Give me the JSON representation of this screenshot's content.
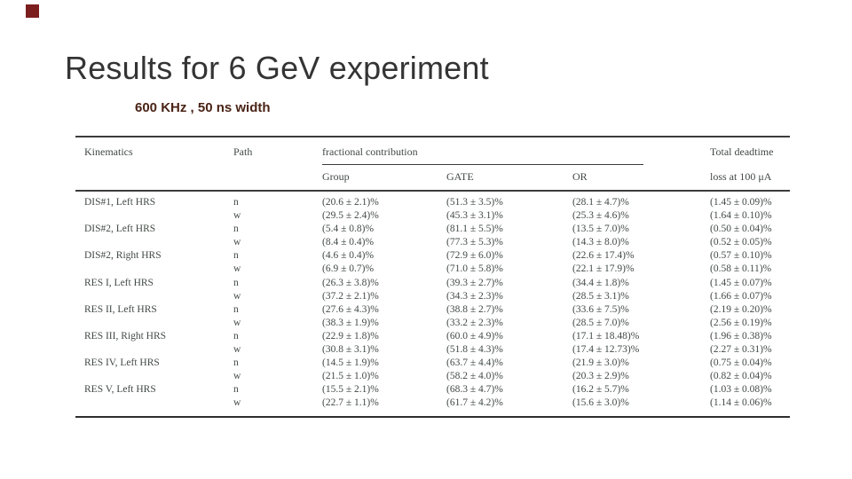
{
  "slide": {
    "title": "Results for 6 GeV experiment",
    "subtitle": "600 KHz , 50 ns width",
    "accent_color": "#7b1e1e"
  },
  "table": {
    "col_kinematics": "Kinematics",
    "col_path": "Path",
    "col_fractional": "fractional contribution",
    "col_group": "Group",
    "col_gate": "GATE",
    "col_or": "OR",
    "col_deadtime_line1": "Total deadtime",
    "col_deadtime_line2": "loss at 100 μA",
    "groups": [
      {
        "kinematics": "DIS#1, Left HRS",
        "rows": [
          {
            "path": "n",
            "group": "(20.6 ± 2.1)%",
            "gate": "(51.3 ± 3.5)%",
            "or": "(28.1 ± 4.7)%",
            "deadtime": "(1.45 ± 0.09)%"
          },
          {
            "path": "w",
            "group": "(29.5 ± 2.4)%",
            "gate": "(45.3 ± 3.1)%",
            "or": "(25.3 ± 4.6)%",
            "deadtime": "(1.64 ± 0.10)%"
          }
        ]
      },
      {
        "kinematics": "DIS#2, Left HRS",
        "rows": [
          {
            "path": "n",
            "group": "(5.4 ± 0.8)%",
            "gate": "(81.1 ± 5.5)%",
            "or": "(13.5 ± 7.0)%",
            "deadtime": "(0.50 ± 0.04)%"
          },
          {
            "path": "w",
            "group": "(8.4 ± 0.4)%",
            "gate": "(77.3 ± 5.3)%",
            "or": "(14.3 ± 8.0)%",
            "deadtime": "(0.52 ± 0.05)%"
          }
        ]
      },
      {
        "kinematics": "DIS#2, Right HRS",
        "rows": [
          {
            "path": "n",
            "group": "(4.6 ± 0.4)%",
            "gate": "(72.9 ± 6.0)%",
            "or": "(22.6 ± 17.4)%",
            "deadtime": "(0.57 ± 0.10)%"
          },
          {
            "path": "w",
            "group": "(6.9 ± 0.7)%",
            "gate": "(71.0 ± 5.8)%",
            "or": "(22.1 ± 17.9)%",
            "deadtime": "(0.58 ± 0.11)%"
          }
        ]
      },
      {
        "kinematics": "RES I, Left HRS",
        "rows": [
          {
            "path": "n",
            "group": "(26.3 ± 3.8)%",
            "gate": "(39.3 ± 2.7)%",
            "or": "(34.4 ± 1.8)%",
            "deadtime": "(1.45 ± 0.07)%"
          },
          {
            "path": "w",
            "group": "(37.2 ± 2.1)%",
            "gate": "(34.3 ± 2.3)%",
            "or": "(28.5 ± 3.1)%",
            "deadtime": "(1.66 ± 0.07)%"
          }
        ]
      },
      {
        "kinematics": "RES II, Left HRS",
        "rows": [
          {
            "path": "n",
            "group": "(27.6 ± 4.3)%",
            "gate": "(38.8 ± 2.7)%",
            "or": "(33.6 ± 7.5)%",
            "deadtime": "(2.19 ± 0.20)%"
          },
          {
            "path": "w",
            "group": "(38.3 ± 1.9)%",
            "gate": "(33.2 ± 2.3)%",
            "or": "(28.5 ± 7.0)%",
            "deadtime": "(2.56 ± 0.19)%"
          }
        ]
      },
      {
        "kinematics": "RES III, Right HRS",
        "rows": [
          {
            "path": "n",
            "group": "(22.9 ± 1.8)%",
            "gate": "(60.0 ± 4.9)%",
            "or": "(17.1 ± 18.48)%",
            "deadtime": "(1.96 ± 0.38)%"
          },
          {
            "path": "w",
            "group": "(30.8 ± 3.1)%",
            "gate": "(51.8 ± 4.3)%",
            "or": "(17.4 ± 12.73)%",
            "deadtime": "(2.27 ± 0.31)%"
          }
        ]
      },
      {
        "kinematics": "RES IV, Left HRS",
        "rows": [
          {
            "path": "n",
            "group": "(14.5 ± 1.9)%",
            "gate": "(63.7 ± 4.4)%",
            "or": "(21.9 ± 3.0)%",
            "deadtime": "(0.75 ± 0.04)%"
          },
          {
            "path": "w",
            "group": "(21.5 ± 1.0)%",
            "gate": "(58.2 ± 4.0)%",
            "or": "(20.3 ± 2.9)%",
            "deadtime": "(0.82 ± 0.04)%"
          }
        ]
      },
      {
        "kinematics": "RES V, Left HRS",
        "rows": [
          {
            "path": "n",
            "group": "(15.5 ± 2.1)%",
            "gate": "(68.3 ± 4.7)%",
            "or": "(16.2 ± 5.7)%",
            "deadtime": "(1.03 ± 0.08)%"
          },
          {
            "path": "w",
            "group": "(22.7 ± 1.1)%",
            "gate": "(61.7 ± 4.2)%",
            "or": "(15.6 ± 3.0)%",
            "deadtime": "(1.14 ± 0.06)%"
          }
        ]
      }
    ]
  }
}
